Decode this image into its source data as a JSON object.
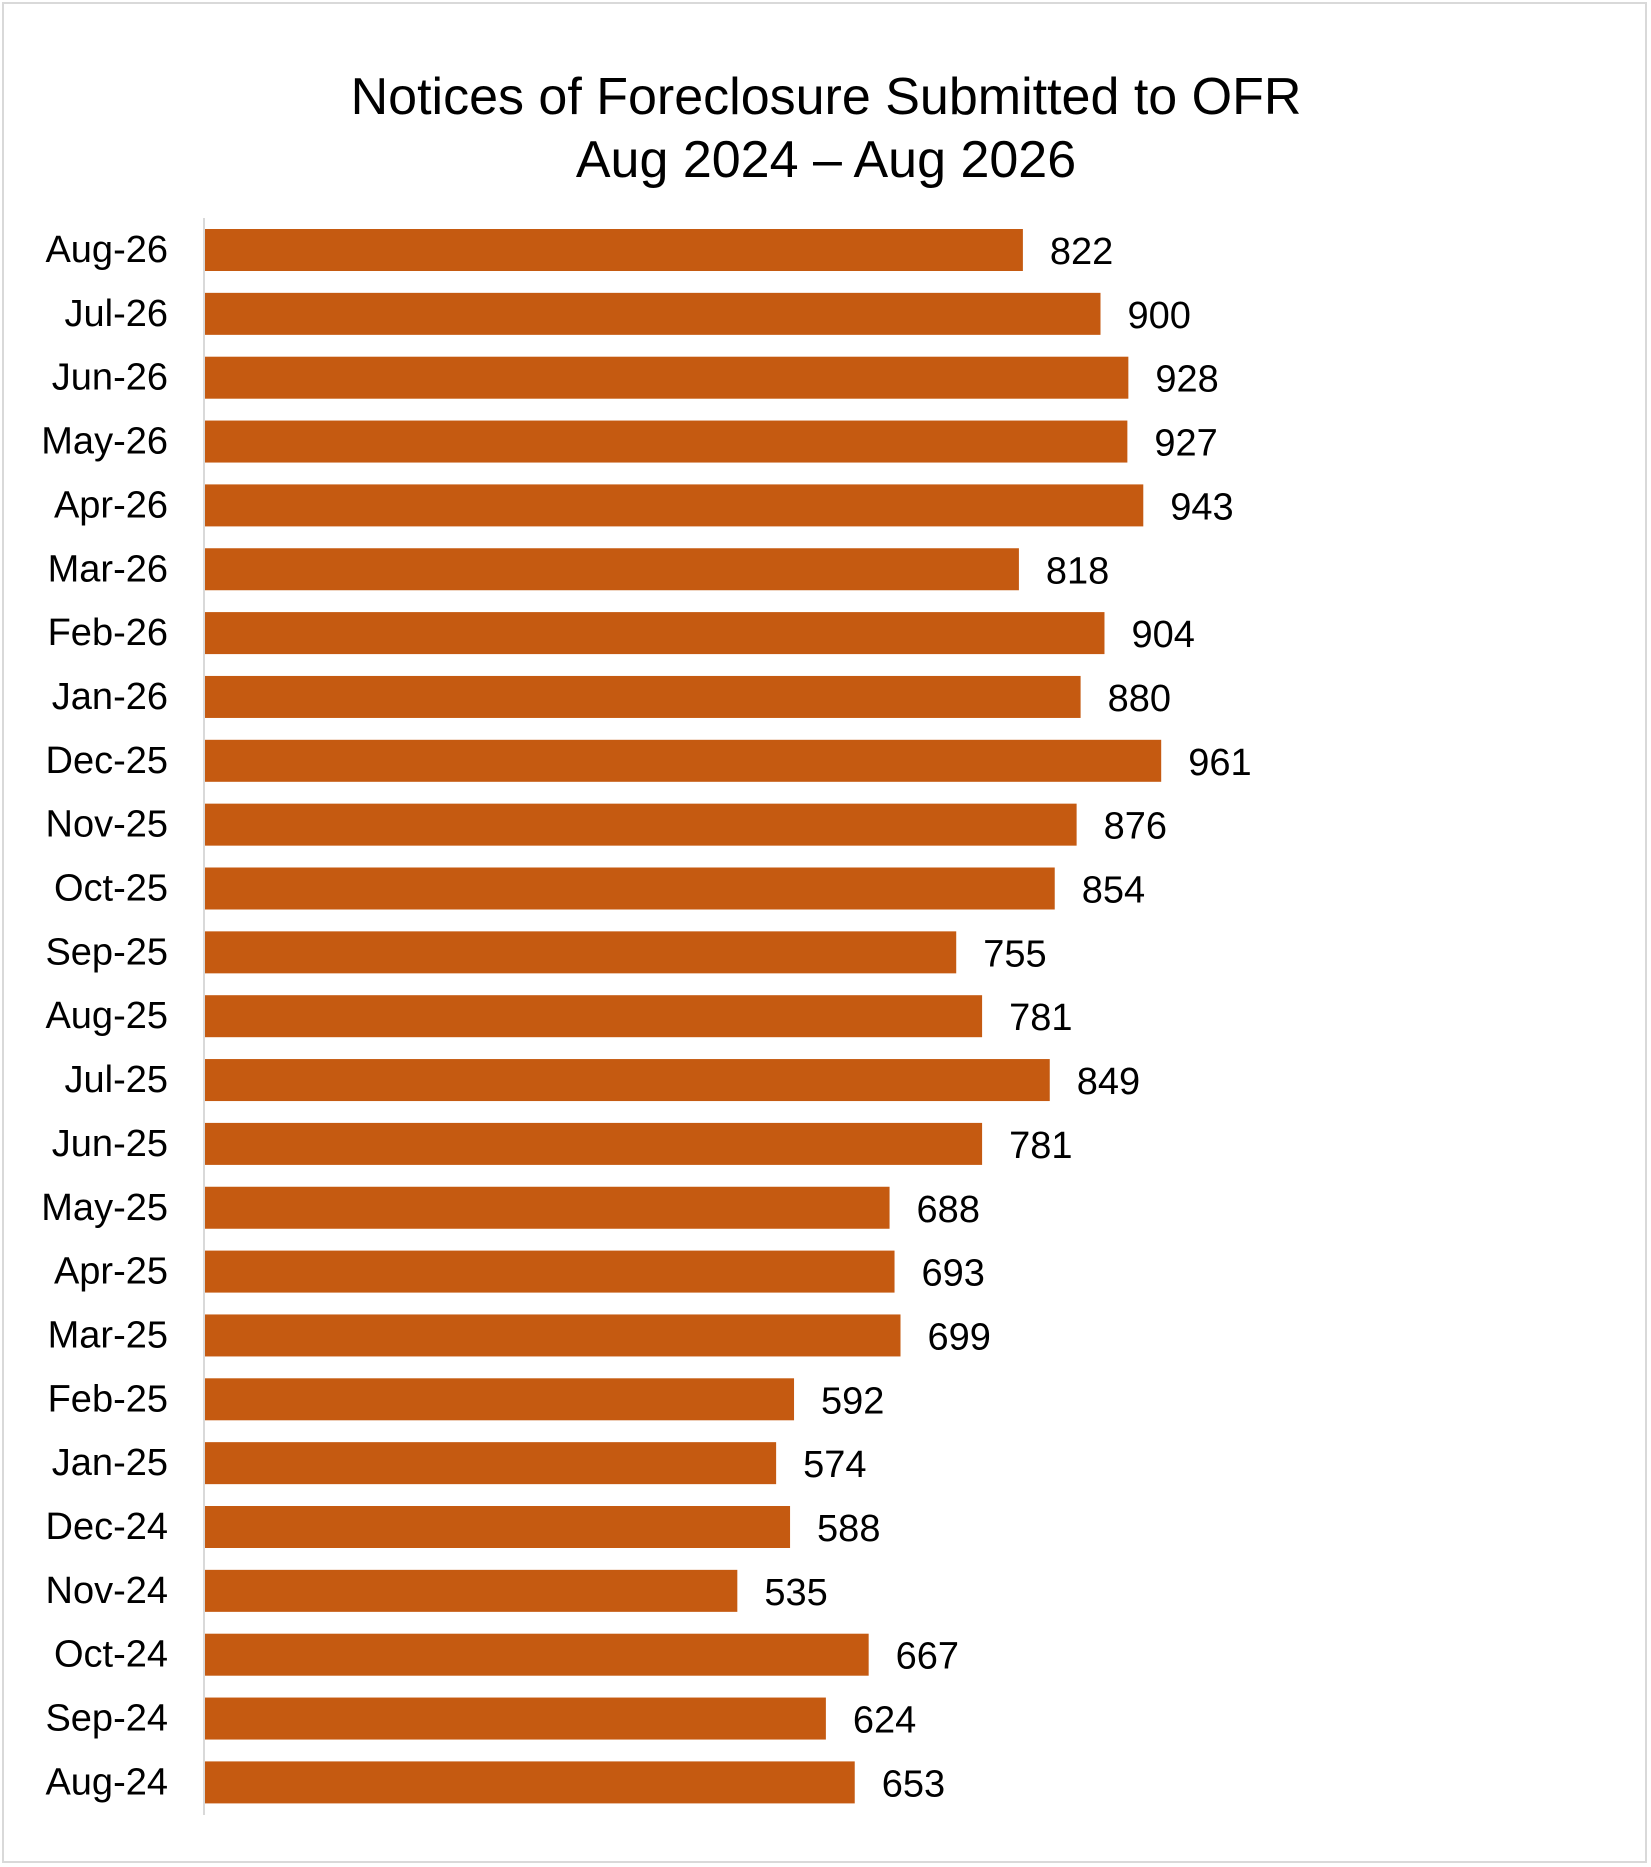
{
  "chart_data": {
    "type": "bar",
    "orientation": "horizontal",
    "title": "Notices of Foreclosure Submitted to OFR",
    "subtitle": "Aug 2024 – Aug 2026",
    "xlabel": "",
    "ylabel": "",
    "xlim": [
      0,
      1000
    ],
    "grid": false,
    "legend": "none",
    "data_labels": true,
    "bar_color": "#C55A11",
    "categories": [
      "Aug-26",
      "Jul-26",
      "Jun-26",
      "May-26",
      "Apr-26",
      "Mar-26",
      "Feb-26",
      "Jan-26",
      "Dec-25",
      "Nov-25",
      "Oct-25",
      "Sep-25",
      "Aug-25",
      "Jul-25",
      "Jun-25",
      "May-25",
      "Apr-25",
      "Mar-25",
      "Feb-25",
      "Jan-25",
      "Dec-24",
      "Nov-24",
      "Oct-24",
      "Sep-24",
      "Aug-24"
    ],
    "values": [
      822,
      900,
      928,
      927,
      943,
      818,
      904,
      880,
      961,
      876,
      854,
      755,
      781,
      849,
      781,
      688,
      693,
      699,
      592,
      574,
      588,
      535,
      667,
      624,
      653
    ]
  }
}
